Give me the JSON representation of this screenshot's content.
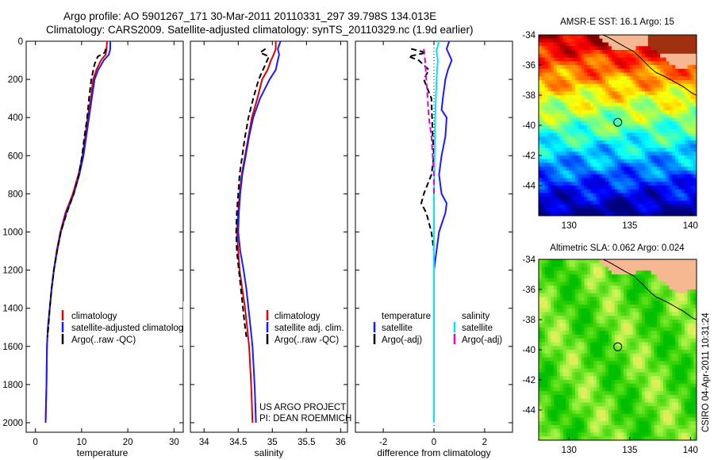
{
  "header": {
    "line1": "Argo profile: AO 5901267_171 30-Mar-2011 20110331_297 39.798S 134.013E",
    "line2": "Climatology: CARS2009. Satellite-adjusted climatology: synTS_20110329.nc (1.9d earlier)"
  },
  "credit": {
    "line1": "US ARGO PROJECT",
    "line2": "PI: DEAN ROEMMICH",
    "vertical": "CSIRO 04-Apr-2011 10:31:24"
  },
  "chart_data": [
    {
      "type": "line",
      "id": "temperature",
      "xlabel": "temperature",
      "ylabel": "",
      "xlim": [
        -2,
        32
      ],
      "ylim": [
        0,
        2050
      ],
      "y_inverted": true,
      "xticks": [
        0,
        10,
        20,
        30
      ],
      "yticks": [
        0,
        200,
        400,
        600,
        800,
        1000,
        1200,
        1400,
        1600,
        1800,
        2000
      ],
      "legend": [
        {
          "label": "climatology",
          "color": "#e00000"
        },
        {
          "label": "satellite-adjusted climatology",
          "color": "#1a1aff"
        },
        {
          "label": "Argo(..raw -QC)",
          "color": "#000000"
        }
      ],
      "series": [
        {
          "name": "climatology",
          "color": "#e00000",
          "dash": "",
          "x": [
            15.5,
            15.4,
            15.2,
            14.2,
            13.2,
            12.5,
            12.0,
            11.3,
            10.8,
            10.2,
            9.3,
            8.1,
            6.5,
            5.4,
            4.6,
            4.0,
            3.5,
            3.1,
            2.7,
            2.5,
            2.4,
            2.3,
            2.2
          ],
          "y": [
            0,
            40,
            70,
            100,
            150,
            200,
            300,
            400,
            500,
            600,
            700,
            800,
            900,
            1000,
            1100,
            1200,
            1300,
            1400,
            1500,
            1600,
            1800,
            1900,
            2000
          ]
        },
        {
          "name": "satellite-adjusted climatology",
          "color": "#1a1aff",
          "dash": "",
          "x": [
            16.2,
            16.2,
            15.9,
            14.8,
            13.6,
            12.8,
            12.2,
            11.6,
            11.0,
            10.4,
            9.5,
            8.3,
            6.7,
            5.5,
            4.7,
            4.0,
            3.5,
            3.1,
            2.7,
            2.5,
            2.4,
            2.3,
            2.2
          ],
          "y": [
            0,
            40,
            70,
            100,
            150,
            200,
            300,
            400,
            500,
            600,
            700,
            800,
            900,
            1000,
            1100,
            1200,
            1300,
            1400,
            1500,
            1600,
            1800,
            1900,
            2000
          ]
        },
        {
          "name": "Argo(..raw -QC)",
          "color": "#000000",
          "dash": "7,4",
          "x": [
            15.2,
            15.0,
            13.5,
            12.8,
            12.1,
            11.6,
            11.2,
            10.6,
            10.1,
            9.4,
            8.3,
            6.8,
            5.5,
            4.7,
            4.0,
            3.5,
            3.1,
            2.8,
            2.6
          ],
          "y": [
            40,
            60,
            80,
            120,
            200,
            300,
            400,
            500,
            600,
            700,
            800,
            900,
            1000,
            1100,
            1200,
            1300,
            1400,
            1500,
            1550
          ]
        }
      ]
    },
    {
      "type": "line",
      "id": "salinity",
      "xlabel": "salinity",
      "ylabel": "",
      "xlim": [
        33.8,
        36.1
      ],
      "ylim": [
        0,
        2050
      ],
      "y_inverted": true,
      "xticks": [
        34,
        34.5,
        35,
        35.5,
        36
      ],
      "legend": [
        {
          "label": "climatology",
          "color": "#e00000"
        },
        {
          "label": "satellite adj. clim.",
          "color": "#1a1aff"
        },
        {
          "label": "Argo(..raw -QC)",
          "color": "#000000"
        }
      ],
      "series": [
        {
          "name": "climatology",
          "color": "#e00000",
          "dash": "",
          "x": [
            35.05,
            35.05,
            35.02,
            34.98,
            34.93,
            34.85,
            34.78,
            34.7,
            34.65,
            34.6,
            34.55,
            34.52,
            34.5,
            34.48,
            34.5,
            34.52,
            34.56,
            34.6,
            34.63,
            34.66,
            34.69,
            34.7,
            34.71
          ],
          "y": [
            0,
            40,
            70,
            100,
            150,
            200,
            300,
            400,
            500,
            600,
            700,
            800,
            900,
            1000,
            1100,
            1200,
            1300,
            1400,
            1500,
            1600,
            1800,
            1900,
            2000
          ]
        },
        {
          "name": "satellite adj. clim.",
          "color": "#1a1aff",
          "dash": "",
          "x": [
            35.12,
            35.08,
            35.1,
            35.08,
            35.05,
            34.96,
            34.82,
            34.72,
            34.66,
            34.61,
            34.56,
            34.53,
            34.51,
            34.5,
            34.53,
            34.58,
            34.62,
            34.65,
            34.68,
            34.71,
            34.74,
            34.75,
            34.76
          ],
          "y": [
            0,
            40,
            70,
            100,
            150,
            200,
            300,
            400,
            500,
            600,
            700,
            800,
            900,
            1000,
            1100,
            1200,
            1300,
            1400,
            1500,
            1600,
            1800,
            1900,
            2000
          ]
        },
        {
          "name": "Argo(..raw -QC)",
          "color": "#000000",
          "dash": "7,4",
          "x": [
            34.9,
            34.82,
            34.95,
            34.9,
            34.8,
            34.72,
            34.65,
            34.6,
            34.56,
            34.52,
            34.5,
            34.48,
            34.47,
            34.48,
            34.51,
            34.54,
            34.57,
            34.6,
            34.62
          ],
          "y": [
            40,
            60,
            80,
            120,
            200,
            300,
            400,
            500,
            600,
            700,
            800,
            900,
            1000,
            1100,
            1200,
            1300,
            1400,
            1500,
            1550
          ]
        }
      ]
    },
    {
      "type": "line",
      "id": "difference",
      "xlabel": "difference from climatology",
      "ylabel": "",
      "xlim": [
        -3.1,
        3.1
      ],
      "ylim": [
        0,
        2050
      ],
      "y_inverted": true,
      "xticks": [
        -2,
        0,
        2
      ],
      "legend_groups": [
        {
          "title": "temperature",
          "items": [
            {
              "label": "satellite",
              "color": "#1a1aff"
            },
            {
              "label": "Argo(-adj)",
              "color": "#000000"
            }
          ]
        },
        {
          "title": "salinity",
          "items": [
            {
              "label": "satellite",
              "color": "#00e5ff"
            },
            {
              "label": "Argo(-adj)",
              "color": "#e000e0"
            }
          ]
        }
      ],
      "series": [
        {
          "name": "temperature satellite",
          "color": "#1a1aff",
          "dash": "",
          "x": [
            0.6,
            0.5,
            0.7,
            0.55,
            0.45,
            0.35,
            0.3,
            0.5,
            0.45,
            0.3,
            0.2,
            0.3,
            0.5,
            0.45,
            0.2,
            0.1,
            0.0,
            0.0,
            0.0,
            0.0,
            0.0
          ],
          "y": [
            0,
            40,
            100,
            150,
            200,
            300,
            360,
            400,
            500,
            600,
            700,
            800,
            850,
            900,
            1000,
            1100,
            1200,
            1400,
            1600,
            1800,
            2000
          ]
        },
        {
          "name": "temperature Argo(-adj)",
          "color": "#000000",
          "dash": "7,4",
          "x": [
            -0.9,
            -0.3,
            -1.0,
            -0.6,
            -0.2,
            -0.4,
            -0.1,
            -0.05,
            0.0,
            -0.1,
            -0.25,
            -0.4,
            -0.5,
            -0.3,
            -0.1,
            0.0
          ],
          "y": [
            40,
            60,
            80,
            100,
            150,
            200,
            300,
            500,
            600,
            700,
            750,
            800,
            850,
            900,
            1000,
            1100
          ]
        },
        {
          "name": "salinity satellite",
          "color": "#00e5ff",
          "dash": "",
          "x": [
            0.2,
            0.1,
            0.15,
            0.1,
            0.05,
            0.0,
            0.0,
            0.0,
            0.0,
            0.0,
            0.0
          ],
          "y": [
            0,
            50,
            100,
            200,
            400,
            800,
            1200,
            1400,
            1600,
            1800,
            2000
          ]
        },
        {
          "name": "salinity Argo(-adj)",
          "color": "#e000e0",
          "dash": "7,4",
          "x": [
            -0.4,
            -0.35,
            -0.3,
            -0.25,
            -0.2,
            -0.1,
            -0.05,
            0.0,
            0.0
          ],
          "y": [
            40,
            100,
            200,
            300,
            400,
            500,
            600,
            700,
            800
          ]
        }
      ]
    },
    {
      "type": "heatmap",
      "id": "sst-map",
      "title": "AMSR-E SST: 16.1 Argo: 15",
      "xlim": [
        127.5,
        140.5
      ],
      "ylim": [
        -46,
        -34
      ],
      "xticks": [
        130,
        135,
        140
      ],
      "yticks": [
        -34,
        -36,
        -38,
        -40,
        -42,
        -44
      ],
      "argo_marker": {
        "lon": 134.013,
        "lat": -39.798
      },
      "palette": [
        "#00007f",
        "#0000ff",
        "#007fff",
        "#00ffff",
        "#7fff7f",
        "#ffff00",
        "#ff7f00",
        "#ff0000",
        "#7f0000"
      ]
    },
    {
      "type": "heatmap",
      "id": "sla-map",
      "title": "Altimetric SLA: 0.062 Argo: 0.024",
      "xlim": [
        127.5,
        140.5
      ],
      "ylim": [
        -46,
        -34
      ],
      "xticks": [
        130,
        135,
        140
      ],
      "yticks": [
        -34,
        -36,
        -38,
        -40,
        -42,
        -44
      ],
      "argo_marker": {
        "lon": 134.013,
        "lat": -39.798
      },
      "palette": [
        "#00c000",
        "#30d000",
        "#60e020",
        "#a0f040",
        "#e0f060",
        "#f0e040"
      ]
    }
  ]
}
